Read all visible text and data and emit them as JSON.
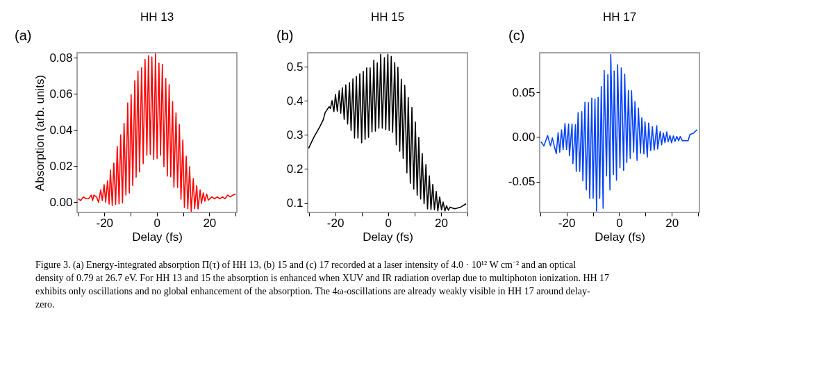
{
  "chart_data": [
    {
      "type": "line",
      "title": "HH 13",
      "xlabel": "Delay (fs)",
      "ylabel": "Absorption (arb. units)",
      "annotations": [
        "(a)",
        "Figure 3. (a) Energy-integrated absorption Π(τ) of HH 13, (b) 15 and (c) 17 recorded at a laser intensity of 4.0 · 10¹² W cm⁻² and an optical density of 0.79 at 26.7 eV. For HH 13 and 15 the absorption is enhanced when XUV and IR radiation overlap due to multiphoton ionization. HH 17 exhibits only oscillations and no global enhancement of the absorption. The 4ω-oscillations are already weakly visible in HH 17 around delay-zero."
      ],
      "xlim": [
        -30.4,
        30.5
      ],
      "ylim": [
        -0.0056,
        0.0828
      ],
      "xticks": [
        {
          "value": -30,
          "label": null
        },
        -20,
        {
          "value": -10,
          "label": null
        },
        0,
        {
          "value": 10,
          "label": null
        },
        20,
        {
          "value": 30,
          "label": null
        }
      ],
      "yticks": [
        {
          "value": 0,
          "label": "0.00"
        },
        {
          "value": 0.02,
          "label": "0.02"
        },
        {
          "value": 0.04,
          "label": "0.04"
        },
        {
          "value": 0.06,
          "label": "0.06"
        },
        {
          "value": 0.08,
          "label": "0.08"
        }
      ],
      "grid": false,
      "marker": "none",
      "line_style": "solid",
      "series": [
        {
          "color": "#ff0000",
          "x": [
            -30,
            -29,
            -28,
            -27,
            -26,
            -25,
            -24.5,
            -24,
            -23,
            -22.2,
            -21.4,
            -20.8,
            -20.1,
            -19.5,
            -18.8,
            -18.2,
            -17.7,
            -17.0,
            -16.4,
            -15.7,
            -15.1,
            -14.4,
            -13.8,
            -13.1,
            -12.5,
            -11.8,
            -11.1,
            -10.5,
            -9.8,
            -9.2,
            -8.4,
            -7.9,
            -7.2,
            -6.6,
            -5.8,
            -5.2,
            -4.5,
            -3.8,
            -3.2,
            -2.5,
            -1.9,
            -1.2,
            -0.5,
            0.1,
            0.8,
            1.4,
            2.1,
            2.7,
            3.4,
            4.0,
            4.7,
            5.3,
            6.0,
            6.5,
            7.3,
            7.9,
            8.6,
            9.2,
            9.9,
            10.5,
            11.2,
            11.8,
            12.5,
            13.1,
            13.9,
            14.4,
            15.2,
            15.7,
            16.5,
            17.0,
            17.7,
            18.3,
            19.0,
            19.6,
            21,
            22,
            23,
            24,
            25,
            26,
            27,
            28,
            29,
            30
          ],
          "values": [
            0.002,
            0.001,
            0.003,
            0.002,
            0.002,
            0.004,
            0.001,
            0.004,
            0.003,
            0.0,
            0.0069,
            0.001,
            0.0098,
            0.0,
            0.0119,
            -0.001,
            0.0178,
            -0.0017,
            0.0217,
            -0.0012,
            0.031,
            -0.0009,
            0.0373,
            -0.0003,
            0.0437,
            0.004,
            0.055,
            0.0052,
            0.0596,
            0.0093,
            0.0673,
            0.0139,
            0.0727,
            0.0168,
            0.0745,
            0.0214,
            0.0791,
            0.026,
            0.0811,
            0.0266,
            0.0805,
            0.0237,
            0.0822,
            0.0243,
            0.077,
            0.026,
            0.0764,
            0.0197,
            0.0686,
            0.0145,
            0.0651,
            0.0141,
            0.0558,
            0.0083,
            0.0494,
            0.0081,
            0.0431,
            0.0017,
            0.0345,
            -0.0029,
            0.0255,
            -0.0035,
            0.0197,
            -0.005,
            0.0131,
            -0.0035,
            0.0093,
            -0.0037,
            0.0069,
            -0.0006,
            0.0052,
            0.0006,
            0.0046,
            0.0012,
            0.003,
            0.002,
            0.003,
            0.002,
            0.003,
            0.002,
            0.004,
            0.003,
            0.004,
            0.0046
          ]
        }
      ]
    },
    {
      "type": "line",
      "title": "HH 15",
      "xlabel": "Delay (fs)",
      "annotations": [
        "(b)"
      ],
      "xlim": [
        -30.4,
        30.0
      ],
      "ylim": [
        0.0725,
        0.5416
      ],
      "xticks": [
        {
          "value": -30,
          "label": null
        },
        -20,
        {
          "value": -10,
          "label": null
        },
        0,
        {
          "value": 10,
          "label": null
        },
        20,
        {
          "value": 30,
          "label": null
        }
      ],
      "yticks": [
        0.1,
        0.2,
        0.3,
        0.4,
        0.5
      ],
      "grid": false,
      "marker": "none",
      "line_style": "solid",
      "series": [
        {
          "color": "#000000",
          "x": [
            -30.05,
            -28.1,
            -25.9,
            -24.5,
            -23.8,
            -22.3,
            -21.8,
            -21.2,
            -20.5,
            -19.9,
            -19.2,
            -18.5,
            -17.9,
            -17.3,
            -16.6,
            -16.0,
            -15.3,
            -14.6,
            -14.0,
            -13.3,
            -12.7,
            -12.0,
            -11.4,
            -10.7,
            -10.0,
            -9.4,
            -8.7,
            -8.1,
            -7.4,
            -6.8,
            -6.1,
            -5.4,
            -4.8,
            -4.1,
            -3.5,
            -2.8,
            -2.2,
            -1.4,
            -0.9,
            -0.1,
            0.4,
            1.2,
            1.7,
            2.5,
            3.1,
            3.7,
            4.4,
            5.0,
            5.7,
            6.3,
            7.1,
            7.6,
            8.4,
            9.0,
            9.7,
            10.3,
            11.0,
            11.6,
            12.3,
            12.9,
            13.6,
            14.3,
            14.9,
            15.6,
            16.2,
            16.9,
            17.5,
            18.2,
            18.8,
            19.5,
            20.2,
            20.8,
            21.5,
            22.1,
            22.8,
            23.4,
            25.2,
            27.4,
            29.5
          ],
          "values": [
            0.261,
            0.293,
            0.323,
            0.345,
            0.366,
            0.383,
            0.378,
            0.401,
            0.369,
            0.419,
            0.37,
            0.43,
            0.364,
            0.439,
            0.346,
            0.447,
            0.332,
            0.454,
            0.313,
            0.465,
            0.291,
            0.472,
            0.291,
            0.48,
            0.277,
            0.487,
            0.287,
            0.497,
            0.293,
            0.497,
            0.309,
            0.52,
            0.311,
            0.512,
            0.32,
            0.537,
            0.32,
            0.527,
            0.316,
            0.537,
            0.313,
            0.531,
            0.308,
            0.513,
            0.271,
            0.499,
            0.252,
            0.464,
            0.231,
            0.446,
            0.189,
            0.41,
            0.158,
            0.381,
            0.141,
            0.338,
            0.123,
            0.293,
            0.112,
            0.246,
            0.098,
            0.213,
            0.083,
            0.18,
            0.081,
            0.155,
            0.08,
            0.134,
            0.077,
            0.118,
            0.08,
            0.103,
            0.077,
            0.092,
            0.079,
            0.088,
            0.083,
            0.088,
            0.098
          ]
        }
      ]
    },
    {
      "type": "line",
      "title": "HH 17",
      "xlabel": "Delay (fs)",
      "annotations": [
        "(c)"
      ],
      "xlim": [
        -30.2,
        30.5
      ],
      "ylim": [
        -0.0846,
        0.0944
      ],
      "xticks": [
        {
          "value": -30,
          "label": null
        },
        -20,
        {
          "value": -10,
          "label": null
        },
        0,
        {
          "value": 10,
          "label": null
        },
        20,
        {
          "value": 30,
          "label": null
        }
      ],
      "yticks": [
        -0.05,
        {
          "value": 0,
          "label": "0.00"
        },
        0.05
      ],
      "grid": false,
      "marker": "none",
      "line_style": "solid",
      "series": [
        {
          "color": "#0040ff",
          "x": [
            -29.7,
            -28.6,
            -27.2,
            -26.1,
            -25.4,
            -24.6,
            -23.9,
            -23.2,
            -22.6,
            -21.9,
            -21.3,
            -20.6,
            -20.0,
            -19.2,
            -18.9,
            -17.9,
            -17.6,
            -16.6,
            -16.3,
            -15.6,
            -15.0,
            -14.2,
            -13.8,
            -13.0,
            -12.5,
            -11.7,
            -11.2,
            -10.4,
            -9.9,
            -9.2,
            -8.6,
            -8.0,
            -7.4,
            -6.8,
            -6.1,
            -5.7,
            -4.8,
            -4.3,
            -3.5,
            -3.2,
            -2.2,
            -1.9,
            -1.0,
            -0.6,
            0.3,
            0.8,
            1.7,
            2.1,
            2.9,
            3.5,
            4.2,
            4.7,
            5.5,
            6.0,
            6.8,
            7.3,
            8.1,
            8.6,
            9.4,
            9.8,
            10.7,
            11.2,
            12.0,
            12.6,
            13.3,
            14.3,
            14.6,
            15.6,
            16.1,
            16.8,
            17.4,
            18.1,
            18.6,
            19.3,
            19.9,
            20.6,
            21.2,
            21.9,
            22.6,
            23.2,
            24.0,
            26.2,
            26.9,
            28.3,
            29.6
          ],
          "values": [
            -0.0054,
            -0.01,
            0.0016,
            -0.01,
            -0.001,
            -0.011,
            -0.0186,
            0.0049,
            -0.017,
            0.0079,
            -0.0142,
            0.0149,
            -0.0142,
            0.0145,
            -0.0212,
            0.0145,
            -0.0298,
            0.0138,
            -0.0387,
            0.0273,
            -0.0387,
            0.0284,
            -0.0492,
            0.0389,
            -0.0594,
            0.0385,
            -0.0688,
            0.0436,
            -0.0688,
            0.0424,
            -0.083,
            0.0443,
            -0.0688,
            0.0564,
            -0.08,
            0.0746,
            -0.0438,
            0.0699,
            -0.0594,
            0.0925,
            -0.0422,
            0.0739,
            -0.0485,
            0.0809,
            -0.0345,
            0.0774,
            -0.0375,
            0.0704,
            -0.0287,
            0.0522,
            -0.024,
            0.0517,
            -0.017,
            0.0396,
            -0.0263,
            0.0324,
            -0.0182,
            0.0214,
            -0.0189,
            0.0172,
            -0.0226,
            0.0156,
            -0.0152,
            0.0114,
            -0.0147,
            0.0126,
            -0.0135,
            0.0063,
            -0.0089,
            0.0044,
            -0.0065,
            0.0056,
            -0.0054,
            0.0016,
            -0.0065,
            0.0012,
            -0.0049,
            0.0005,
            -0.0042,
            0.0005,
            -0.0042,
            -0.0042,
            0.0028,
            0.0044,
            0.0082
          ]
        }
      ]
    }
  ]
}
